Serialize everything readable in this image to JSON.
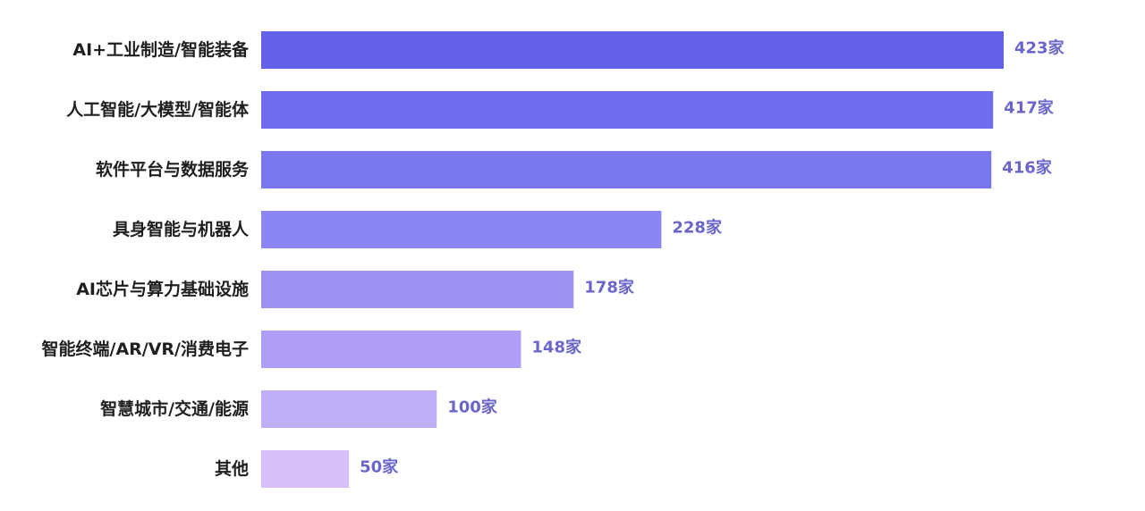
{
  "chart_data": {
    "type": "bar",
    "orientation": "horizontal",
    "categories": [
      "AI+工业制造/智能装备",
      "人工智能/大模型/智能体",
      "软件平台与数据服务",
      "具身智能与机器人",
      "AI芯片与算力基础设施",
      "智能终端/AR/VR/消费电子",
      "智慧城市/交通/能源",
      "其他"
    ],
    "values": [
      423,
      417,
      416,
      228,
      178,
      148,
      100,
      50
    ],
    "value_labels": [
      "423家",
      "417家",
      "416家",
      "228家",
      "178家",
      "148家",
      "100家",
      "50家"
    ],
    "unit": "家",
    "colors": [
      "#6461ea",
      "#706cee",
      "#7b78ef",
      "#8b86f2",
      "#9d92f3",
      "#b09ef6",
      "#c0aef8",
      "#d7bff9"
    ],
    "value_label_color": "#6a66c9",
    "grid": false,
    "legend": "none",
    "xlim": [
      0,
      423
    ]
  }
}
